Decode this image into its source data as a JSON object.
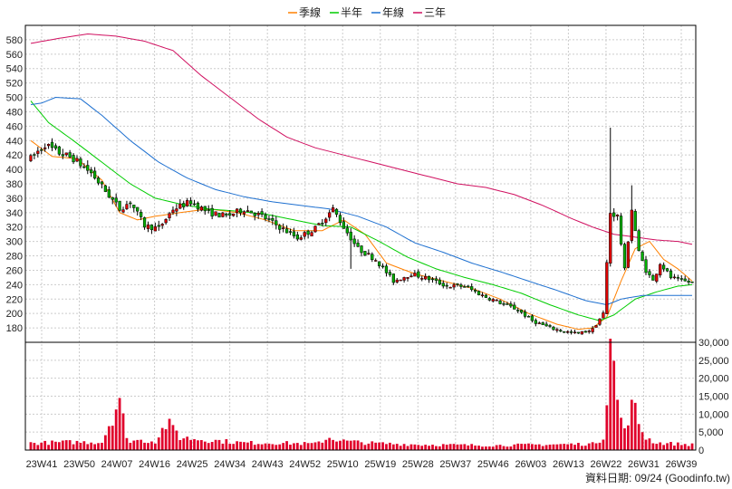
{
  "chart_data": {
    "type": "candlestick",
    "legend": [
      {
        "name": "季線",
        "color": "#ff8000"
      },
      {
        "name": "半年",
        "color": "#00cc00"
      },
      {
        "name": "年線",
        "color": "#1e70d0"
      },
      {
        "name": "三年",
        "color": "#d01060"
      }
    ],
    "legend_placement": "top-center",
    "price_axis": {
      "ylim": [
        160,
        600
      ],
      "ticks": [
        180,
        200,
        220,
        240,
        260,
        280,
        300,
        320,
        340,
        360,
        380,
        400,
        420,
        440,
        460,
        480,
        500,
        520,
        540,
        560,
        580
      ]
    },
    "volume_axis": {
      "ylim": [
        0,
        30000
      ],
      "ticks": [
        0,
        5000,
        10000,
        15000,
        20000,
        25000,
        30000
      ],
      "tick_labels": [
        "0",
        "5,000",
        "10,000",
        "15,000",
        "20,000",
        "25,000",
        "30,000"
      ]
    },
    "x_labels": [
      "23W41",
      "23W50",
      "24W07",
      "24W16",
      "24W25",
      "24W34",
      "24W43",
      "24W52",
      "25W10",
      "25W19",
      "25W28",
      "25W37",
      "25W46",
      "26W03",
      "26W13",
      "26W22",
      "26W31",
      "26W39"
    ],
    "up_color": "#e00000",
    "down_color": "#00b000",
    "grid": true,
    "price_anchors": [
      [
        0,
        415
      ],
      [
        4,
        435
      ],
      [
        7,
        425
      ],
      [
        12,
        415
      ],
      [
        17,
        395
      ],
      [
        21,
        370
      ],
      [
        25,
        345
      ],
      [
        28,
        355
      ],
      [
        32,
        322
      ],
      [
        36,
        318
      ],
      [
        40,
        345
      ],
      [
        45,
        355
      ],
      [
        50,
        340
      ],
      [
        55,
        335
      ],
      [
        60,
        345
      ],
      [
        65,
        335
      ],
      [
        70,
        320
      ],
      [
        75,
        305
      ],
      [
        80,
        318
      ],
      [
        85,
        345
      ],
      [
        88,
        320
      ],
      [
        92,
        290
      ],
      [
        97,
        275
      ],
      [
        102,
        245
      ],
      [
        107,
        255
      ],
      [
        112,
        248
      ],
      [
        117,
        238
      ],
      [
        122,
        238
      ],
      [
        127,
        225
      ],
      [
        132,
        215
      ],
      [
        137,
        205
      ],
      [
        141,
        190
      ],
      [
        146,
        180
      ],
      [
        150,
        175
      ],
      [
        154,
        172
      ],
      [
        158,
        178
      ],
      [
        161,
        200
      ],
      [
        163,
        340
      ],
      [
        165,
        335
      ],
      [
        167,
        260
      ],
      [
        169,
        345
      ],
      [
        171,
        285
      ],
      [
        173,
        260
      ],
      [
        175,
        245
      ],
      [
        177,
        270
      ],
      [
        180,
        250
      ],
      [
        183,
        245
      ],
      [
        186,
        243
      ]
    ],
    "ma_quarter": [
      [
        0,
        440
      ],
      [
        6,
        418
      ],
      [
        13,
        415
      ],
      [
        20,
        385
      ],
      [
        25,
        340
      ],
      [
        30,
        330
      ],
      [
        35,
        335
      ],
      [
        42,
        340
      ],
      [
        50,
        345
      ],
      [
        58,
        340
      ],
      [
        66,
        330
      ],
      [
        74,
        315
      ],
      [
        82,
        315
      ],
      [
        88,
        330
      ],
      [
        94,
        310
      ],
      [
        100,
        270
      ],
      [
        108,
        255
      ],
      [
        116,
        245
      ],
      [
        124,
        235
      ],
      [
        132,
        220
      ],
      [
        140,
        200
      ],
      [
        148,
        185
      ],
      [
        154,
        178
      ],
      [
        158,
        180
      ],
      [
        162,
        195
      ],
      [
        166,
        245
      ],
      [
        170,
        290
      ],
      [
        174,
        300
      ],
      [
        178,
        275
      ],
      [
        182,
        262
      ],
      [
        186,
        245
      ]
    ],
    "ma_halfyear": [
      [
        0,
        495
      ],
      [
        5,
        465
      ],
      [
        12,
        440
      ],
      [
        20,
        410
      ],
      [
        28,
        380
      ],
      [
        35,
        360
      ],
      [
        42,
        352
      ],
      [
        50,
        345
      ],
      [
        58,
        342
      ],
      [
        66,
        338
      ],
      [
        74,
        330
      ],
      [
        82,
        322
      ],
      [
        90,
        320
      ],
      [
        98,
        300
      ],
      [
        106,
        278
      ],
      [
        114,
        262
      ],
      [
        122,
        250
      ],
      [
        130,
        240
      ],
      [
        138,
        228
      ],
      [
        146,
        212
      ],
      [
        154,
        198
      ],
      [
        160,
        190
      ],
      [
        164,
        198
      ],
      [
        170,
        220
      ],
      [
        176,
        230
      ],
      [
        182,
        238
      ],
      [
        186,
        240
      ]
    ],
    "ma_year": [
      [
        0,
        490
      ],
      [
        3,
        492
      ],
      [
        7,
        500
      ],
      [
        14,
        498
      ],
      [
        20,
        475
      ],
      [
        28,
        440
      ],
      [
        36,
        410
      ],
      [
        44,
        388
      ],
      [
        52,
        372
      ],
      [
        60,
        362
      ],
      [
        68,
        355
      ],
      [
        76,
        350
      ],
      [
        84,
        345
      ],
      [
        92,
        335
      ],
      [
        100,
        320
      ],
      [
        108,
        298
      ],
      [
        116,
        285
      ],
      [
        124,
        270
      ],
      [
        132,
        258
      ],
      [
        140,
        245
      ],
      [
        148,
        232
      ],
      [
        156,
        218
      ],
      [
        162,
        212
      ],
      [
        166,
        220
      ],
      [
        172,
        225
      ],
      [
        180,
        225
      ],
      [
        186,
        225
      ]
    ],
    "ma_3year": [
      [
        0,
        575
      ],
      [
        8,
        582
      ],
      [
        16,
        588
      ],
      [
        24,
        585
      ],
      [
        32,
        578
      ],
      [
        40,
        565
      ],
      [
        48,
        530
      ],
      [
        56,
        500
      ],
      [
        64,
        470
      ],
      [
        72,
        445
      ],
      [
        80,
        430
      ],
      [
        88,
        420
      ],
      [
        96,
        410
      ],
      [
        104,
        400
      ],
      [
        112,
        390
      ],
      [
        120,
        380
      ],
      [
        128,
        375
      ],
      [
        136,
        365
      ],
      [
        144,
        350
      ],
      [
        152,
        332
      ],
      [
        158,
        320
      ],
      [
        164,
        310
      ],
      [
        170,
        306
      ],
      [
        176,
        302
      ],
      [
        182,
        300
      ],
      [
        186,
        296
      ]
    ],
    "volume_anchors": [
      [
        0,
        1900
      ],
      [
        10,
        2200
      ],
      [
        20,
        2200
      ],
      [
        25,
        14500
      ],
      [
        27,
        2800
      ],
      [
        35,
        2500
      ],
      [
        39,
        8700
      ],
      [
        42,
        3500
      ],
      [
        50,
        2800
      ],
      [
        60,
        2000
      ],
      [
        70,
        2000
      ],
      [
        80,
        1700
      ],
      [
        84,
        3500
      ],
      [
        88,
        2500
      ],
      [
        96,
        1900
      ],
      [
        110,
        1500
      ],
      [
        130,
        1300
      ],
      [
        150,
        1600
      ],
      [
        158,
        1700
      ],
      [
        161,
        3500
      ],
      [
        163,
        31000
      ],
      [
        165,
        14000
      ],
      [
        167,
        5000
      ],
      [
        169,
        14000
      ],
      [
        171,
        7500
      ],
      [
        173,
        3500
      ],
      [
        176,
        2000
      ],
      [
        186,
        1500
      ]
    ],
    "footer": "資料日期: 09/24 (Goodinfo.tw)"
  }
}
